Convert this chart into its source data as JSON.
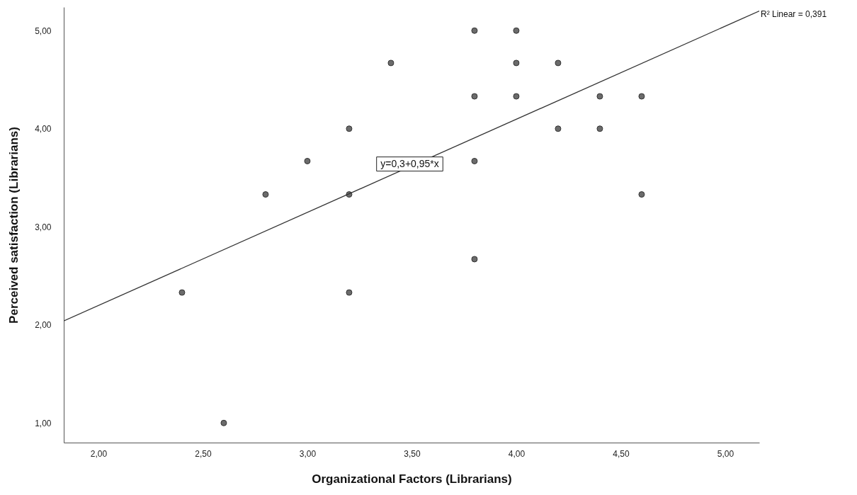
{
  "chart_data": {
    "type": "scatter",
    "xlabel": "Organizational Factors (Librarians)",
    "ylabel": "Perceived satisfaction (Librarians)",
    "xlim": [
      1.834,
      5.163
    ],
    "ylim": [
      0.8,
      5.24
    ],
    "xticks": [
      {
        "value": 2,
        "label": "2,00"
      },
      {
        "value": 2.5,
        "label": "2,50"
      },
      {
        "value": 3,
        "label": "3,00"
      },
      {
        "value": 3.5,
        "label": "3,50"
      },
      {
        "value": 4,
        "label": "4,00"
      },
      {
        "value": 4.5,
        "label": "4,50"
      },
      {
        "value": 5,
        "label": "5,00"
      }
    ],
    "yticks": [
      {
        "value": 1,
        "label": "1,00"
      },
      {
        "value": 2,
        "label": "2,00"
      },
      {
        "value": 3,
        "label": "3,00"
      },
      {
        "value": 4,
        "label": "4,00"
      },
      {
        "value": 5,
        "label": "5,00"
      }
    ],
    "grid": false,
    "series": [
      {
        "marker": "circle",
        "color": "#6b6b6b",
        "x": [
          2.4,
          2.6,
          2.8,
          3.0,
          3.2,
          3.2,
          3.2,
          3.4,
          3.8,
          3.8,
          3.8,
          3.8,
          4.0,
          4.0,
          4.0,
          4.2,
          4.2,
          4.4,
          4.4,
          4.6,
          4.6
        ],
        "values": [
          2.33,
          1.0,
          3.33,
          3.67,
          4.0,
          3.33,
          2.33,
          4.67,
          5.0,
          4.33,
          3.67,
          2.67,
          5.0,
          4.67,
          4.33,
          4.67,
          4.0,
          4.33,
          4.0,
          4.33,
          3.33
        ]
      },
      {
        "type": "line",
        "color": "#333333",
        "x": [
          1.834,
          5.163
        ],
        "values": [
          2.04,
          5.2
        ]
      }
    ],
    "annotations": [
      {
        "text": "y=0,3+0,95*x",
        "x": 3.49,
        "y": 3.64
      },
      {
        "text": "R² Linear = 0,391",
        "x": 5.163,
        "y": 5.2
      }
    ]
  }
}
